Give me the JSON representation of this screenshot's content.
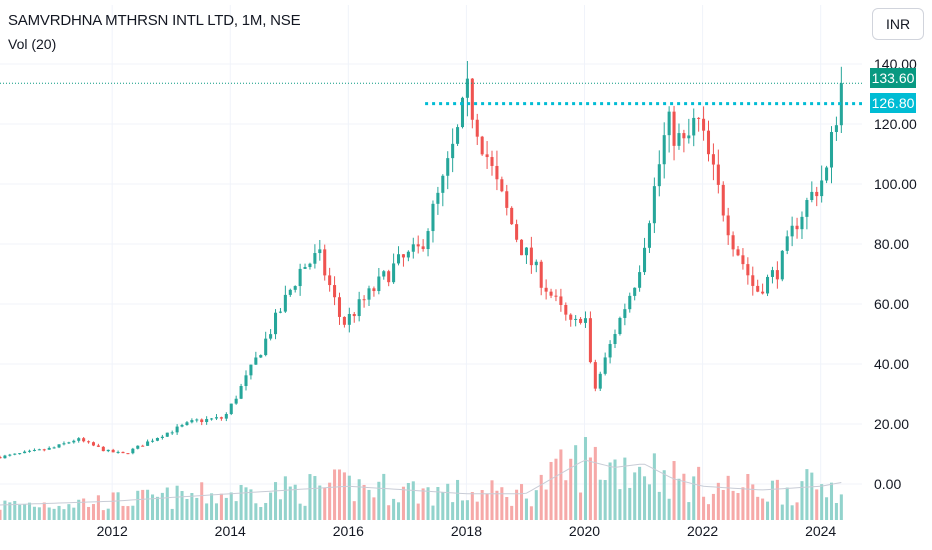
{
  "header": {
    "title": "SAMVRDHNA MTHRSN INTL LTD, 1M, NSE",
    "volume_label": "Vol (20)",
    "currency": "INR"
  },
  "price_tags": {
    "last": "133.60",
    "level": "126.80"
  },
  "colors": {
    "up": "#26a69a",
    "down": "#ef5350",
    "vol_up": "#92d3cc",
    "vol_down": "#f6a9a8",
    "level_line": "#00bcd4",
    "last_line": "#089981"
  },
  "chart_data": {
    "type": "candlestick",
    "interval": "1M",
    "x_range": [
      2010.1,
      2024.7
    ],
    "ylim": [
      -12,
      143
    ],
    "y_ticks": [
      0,
      20,
      40,
      60,
      80,
      100,
      120,
      140
    ],
    "y_tick_labels": [
      "0.00",
      "20.00",
      "40.00",
      "60.00",
      "80.00",
      "100.00",
      "120.00",
      "140.00"
    ],
    "x_ticks": [
      2012,
      2014,
      2016,
      2018,
      2020,
      2022,
      2024
    ],
    "x_tick_labels": [
      "2012",
      "2014",
      "2016",
      "2018",
      "2020",
      "2022",
      "2024"
    ],
    "last_price": 133.6,
    "horizontal_level": 126.8,
    "price_path": [
      [
        2010.1,
        9
      ],
      [
        2011.0,
        12
      ],
      [
        2011.4,
        15
      ],
      [
        2011.9,
        11
      ],
      [
        2012.2,
        10
      ],
      [
        2012.8,
        16
      ],
      [
        2013.4,
        21
      ],
      [
        2013.9,
        22
      ],
      [
        2014.4,
        40
      ],
      [
        2014.8,
        56
      ],
      [
        2015.2,
        72
      ],
      [
        2015.5,
        76
      ],
      [
        2015.7,
        65
      ],
      [
        2015.9,
        53
      ],
      [
        2016.3,
        62
      ],
      [
        2016.8,
        73
      ],
      [
        2017.2,
        78
      ],
      [
        2017.6,
        100
      ],
      [
        2017.9,
        120
      ],
      [
        2018.0,
        131
      ],
      [
        2018.5,
        100
      ],
      [
        2018.9,
        80
      ],
      [
        2019.4,
        64
      ],
      [
        2019.8,
        52
      ],
      [
        2020.0,
        58
      ],
      [
        2020.15,
        30
      ],
      [
        2020.5,
        50
      ],
      [
        2020.9,
        70
      ],
      [
        2021.1,
        90
      ],
      [
        2021.4,
        120
      ],
      [
        2021.7,
        112
      ],
      [
        2021.9,
        122
      ],
      [
        2022.2,
        102
      ],
      [
        2022.5,
        82
      ],
      [
        2022.9,
        64
      ],
      [
        2023.3,
        72
      ],
      [
        2023.6,
        88
      ],
      [
        2023.9,
        98
      ],
      [
        2024.1,
        104
      ],
      [
        2024.35,
        133.6
      ]
    ],
    "volume_profile": [
      [
        2010.1,
        4
      ],
      [
        2012.0,
        5
      ],
      [
        2014.0,
        7
      ],
      [
        2015.0,
        8
      ],
      [
        2016.0,
        9
      ],
      [
        2017.0,
        8
      ],
      [
        2018.0,
        7
      ],
      [
        2019.0,
        7
      ],
      [
        2020.0,
        16
      ],
      [
        2020.5,
        14
      ],
      [
        2021.0,
        15
      ],
      [
        2021.5,
        11
      ],
      [
        2022.0,
        9
      ],
      [
        2023.0,
        8
      ],
      [
        2024.0,
        9
      ],
      [
        2024.35,
        10
      ]
    ]
  }
}
